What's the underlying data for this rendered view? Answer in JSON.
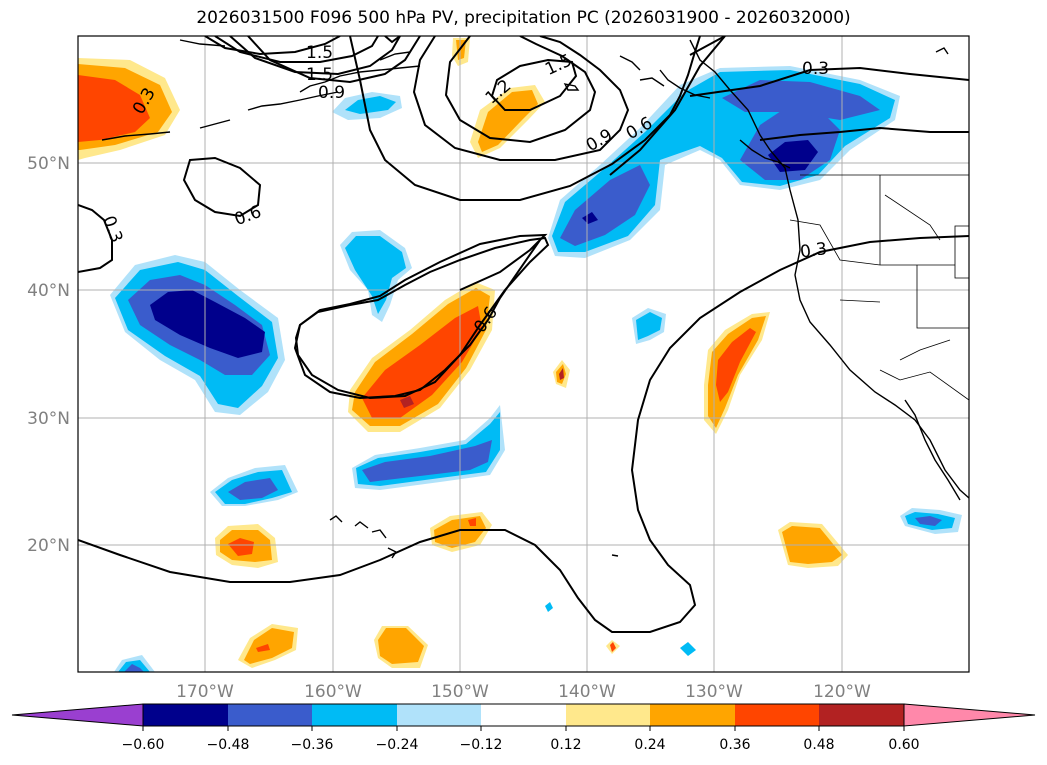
{
  "title": "2026031500 F096 500 hPa PV, precipitation PC (2026031900 - 2026032000)",
  "latitude_labels": [
    "50°N",
    "40°N",
    "30°N",
    "20°N"
  ],
  "longitude_labels": [
    "170°W",
    "160°W",
    "150°W",
    "140°W",
    "130°W",
    "120°W"
  ],
  "colorbar": {
    "tick_labels": [
      "−0.60",
      "−0.48",
      "−0.36",
      "−0.24",
      "−0.12",
      "0.12",
      "0.24",
      "0.36",
      "0.48",
      "0.60"
    ],
    "colors": [
      "#9a3fd0",
      "#00008c",
      "#3a5ccc",
      "#00bbf5",
      "#b0e2fa",
      "#ffffff",
      "#ffe88c",
      "#ffa500",
      "#ff4500",
      "#b22222",
      "#ff88aa"
    ]
  },
  "contour_labels": [
    "1.5",
    "1.5",
    "0.9",
    "0.3",
    "1.2",
    "1.5",
    "0.9",
    "0.6",
    "0.3",
    "0.3",
    "0.6",
    "0.3",
    "0.6"
  ],
  "fill_colors": {
    "light_yellow": "#ffe88c",
    "orange": "#ffa500",
    "red_orange": "#ff4500",
    "dark_red": "#b22222",
    "light_blue": "#b0e2fa",
    "cyan": "#00bbf5",
    "medium_blue": "#3a5ccc",
    "navy": "#00008c"
  }
}
